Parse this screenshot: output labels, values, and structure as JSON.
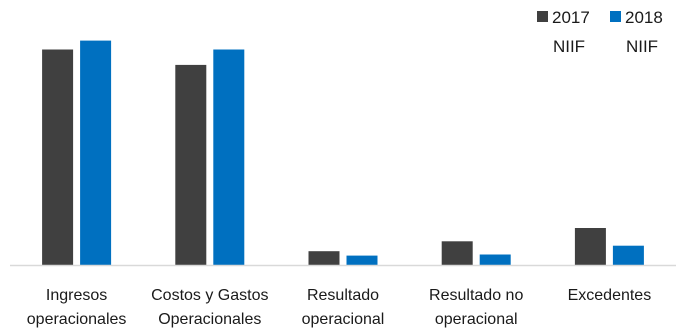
{
  "chart_data": {
    "type": "bar",
    "title": "",
    "xlabel": "",
    "ylabel": "",
    "categories": [
      [
        "Ingresos",
        "operacionales"
      ],
      [
        "Costos y Gastos",
        "Operacionales"
      ],
      [
        "Resultado",
        "operacional"
      ],
      [
        "Resultado no",
        "operacional"
      ],
      [
        "Excedentes"
      ]
    ],
    "series": [
      {
        "name": "2017 NIIF",
        "legend_lines": [
          "2017",
          "NIIF"
        ],
        "color": "#404040",
        "values": [
          98.0,
          91.0,
          6.5,
          11.0,
          17.0
        ]
      },
      {
        "name": "2018 NIIF",
        "legend_lines": [
          "2018",
          "NIIF"
        ],
        "color": "#0070c0",
        "values": [
          102.0,
          98.0,
          4.5,
          5.0,
          9.0
        ]
      }
    ],
    "ylim": [
      0,
      110
    ],
    "grid": false,
    "show_y_axis": false,
    "legend_position": "top-right"
  }
}
